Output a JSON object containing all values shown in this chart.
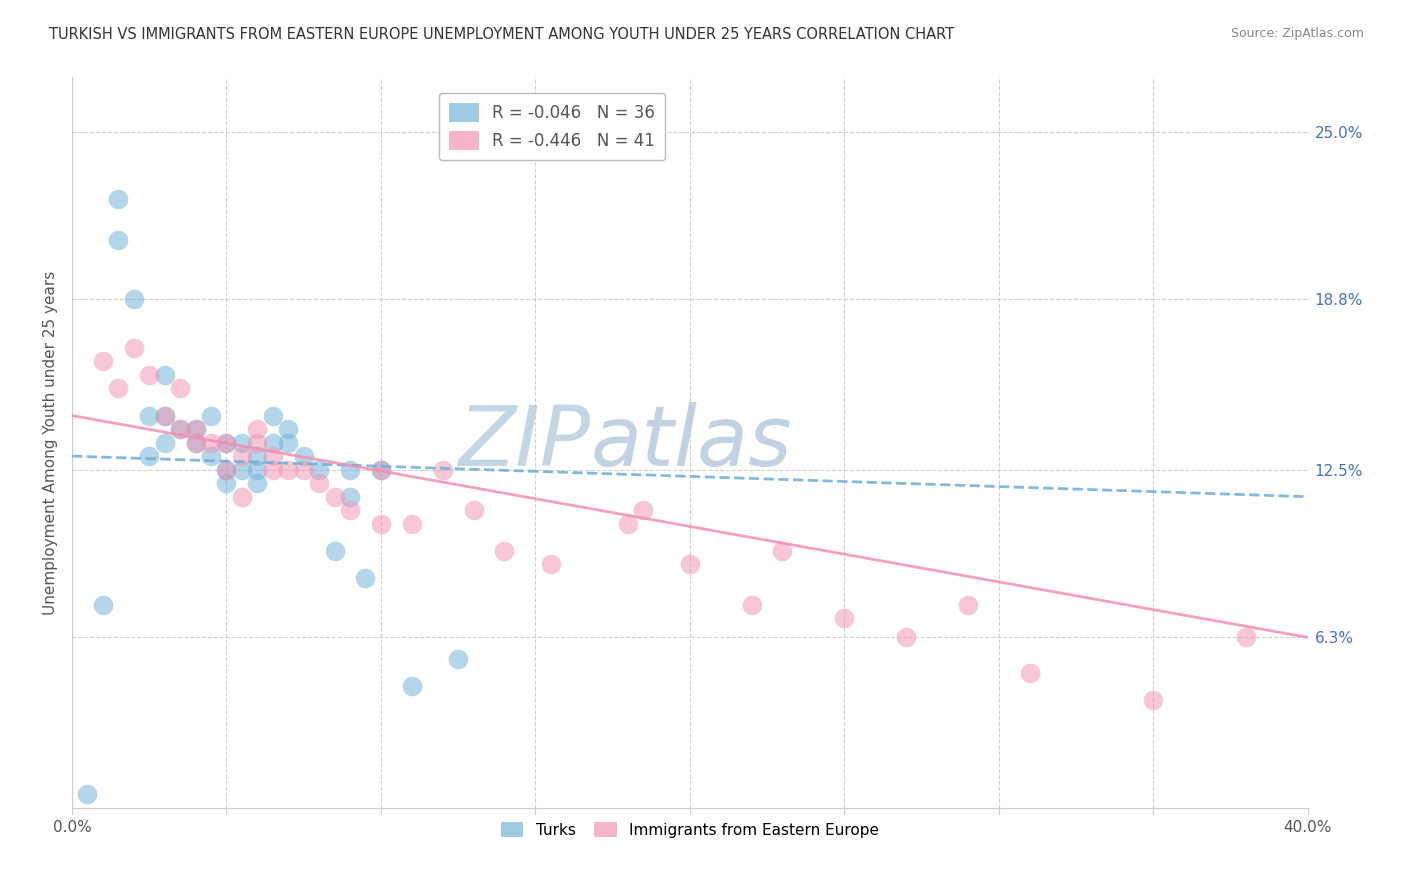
{
  "title": "TURKISH VS IMMIGRANTS FROM EASTERN EUROPE UNEMPLOYMENT AMONG YOUTH UNDER 25 YEARS CORRELATION CHART",
  "source": "Source: ZipAtlas.com",
  "ylabel": "Unemployment Among Youth under 25 years",
  "right_yticks": [
    6.3,
    12.5,
    18.8,
    25.0
  ],
  "right_ytick_labels": [
    "6.3%",
    "12.5%",
    "18.8%",
    "25.0%"
  ],
  "turks_x": [
    0.5,
    1.0,
    1.5,
    1.5,
    2.0,
    2.5,
    2.5,
    3.0,
    3.0,
    3.0,
    3.5,
    4.0,
    4.0,
    4.5,
    4.5,
    5.0,
    5.0,
    5.0,
    5.5,
    5.5,
    6.0,
    6.0,
    6.0,
    6.5,
    6.5,
    7.0,
    7.0,
    7.5,
    8.0,
    8.5,
    9.0,
    9.0,
    9.5,
    10.0,
    11.0,
    12.5
  ],
  "turks_y": [
    0.5,
    7.5,
    22.5,
    21.0,
    18.8,
    14.5,
    13.0,
    16.0,
    14.5,
    13.5,
    14.0,
    14.0,
    13.5,
    14.5,
    13.0,
    13.5,
    12.5,
    12.0,
    13.5,
    12.5,
    13.0,
    12.5,
    12.0,
    14.5,
    13.5,
    14.0,
    13.5,
    13.0,
    12.5,
    9.5,
    12.5,
    11.5,
    8.5,
    12.5,
    4.5,
    5.5
  ],
  "eastern_x": [
    1.0,
    1.5,
    2.0,
    2.5,
    3.0,
    3.5,
    3.5,
    4.0,
    4.0,
    4.5,
    5.0,
    5.0,
    5.5,
    5.5,
    6.0,
    6.0,
    6.5,
    6.5,
    7.0,
    7.5,
    8.0,
    8.5,
    9.0,
    10.0,
    10.0,
    11.0,
    12.0,
    13.0,
    14.0,
    15.5,
    18.0,
    18.5,
    20.0,
    22.0,
    23.0,
    25.0,
    27.0,
    29.0,
    31.0,
    35.0,
    38.0
  ],
  "eastern_y": [
    16.5,
    15.5,
    17.0,
    16.0,
    14.5,
    14.0,
    15.5,
    13.5,
    14.0,
    13.5,
    13.5,
    12.5,
    13.0,
    11.5,
    14.0,
    13.5,
    13.0,
    12.5,
    12.5,
    12.5,
    12.0,
    11.5,
    11.0,
    12.5,
    10.5,
    10.5,
    12.5,
    11.0,
    9.5,
    9.0,
    10.5,
    11.0,
    9.0,
    7.5,
    9.5,
    7.0,
    6.3,
    7.5,
    5.0,
    4.0,
    6.3
  ],
  "xlim": [
    0,
    40
  ],
  "ylim": [
    0,
    27
  ],
  "trend_turks_start": 13.0,
  "trend_turks_end": 11.5,
  "trend_eastern_start": 14.5,
  "trend_eastern_end": 6.3,
  "background_color": "#ffffff",
  "grid_color": "#d0d0d0",
  "blue_color": "#6baed6",
  "pink_color": "#f090b0",
  "watermark_zip_color": "#c8d8e8",
  "watermark_atlas_color": "#b8c8e0"
}
